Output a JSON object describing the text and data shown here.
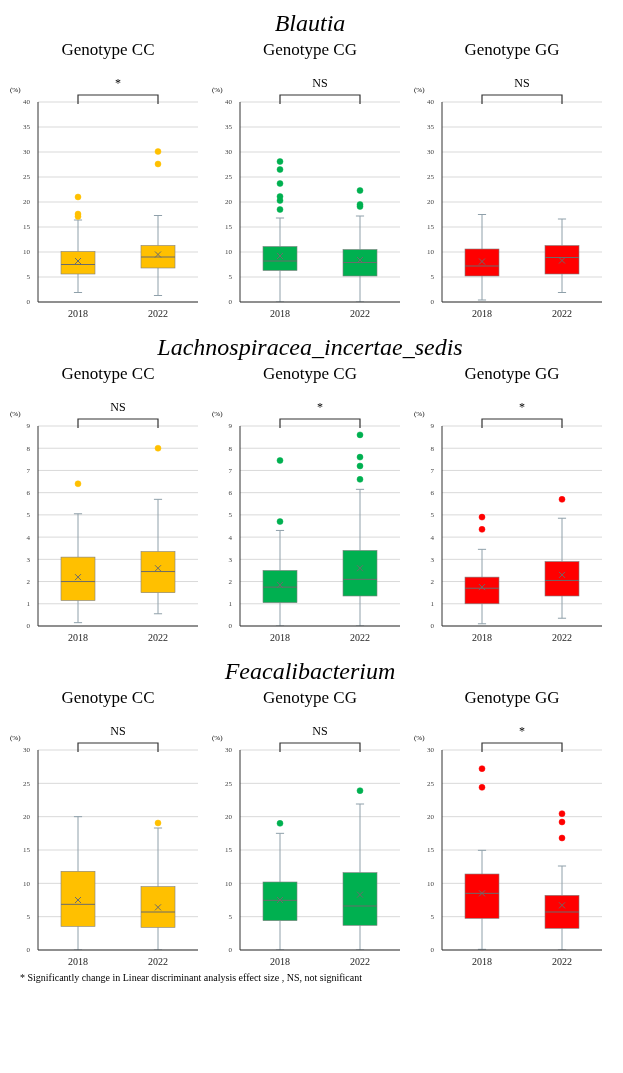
{
  "chart_data": [
    {
      "type": "box",
      "subtitle": "Genotype CC",
      "ylabel": "(%)",
      "categories": [
        "2018",
        "2022"
      ],
      "color": "#ffc000",
      "ylim": [
        0,
        40
      ],
      "yticks": [
        0,
        5,
        10,
        15,
        20,
        25,
        30,
        35,
        40
      ],
      "grid": "y",
      "annotations": [
        "*"
      ],
      "boxes": [
        {
          "low": 1.9,
          "q1": 5.6,
          "median": 7.5,
          "q3": 10.1,
          "high": 16.4,
          "mean": 8.2,
          "outliers": [
            21.0,
            17.6,
            17.1
          ]
        },
        {
          "low": 1.3,
          "q1": 6.8,
          "median": 9.0,
          "q3": 11.3,
          "high": 17.3,
          "mean": 9.5,
          "outliers": [
            30.1,
            27.6
          ]
        }
      ]
    },
    {
      "type": "box",
      "title": "Blautia",
      "subtitle": "Genotype CG",
      "ylabel": "(%)",
      "categories": [
        "2018",
        "2022"
      ],
      "color": "#00b050",
      "ylim": [
        0,
        40
      ],
      "yticks": [
        0,
        5,
        10,
        15,
        20,
        25,
        30,
        35,
        40
      ],
      "grid": "y",
      "annotations": [
        "NS"
      ],
      "boxes": [
        {
          "low": 0,
          "q1": 6.3,
          "median": 8.2,
          "q3": 11.1,
          "high": 16.8,
          "mean": 9.2,
          "outliers": [
            28.1,
            26.5,
            23.7,
            21.1,
            20.3,
            18.5
          ]
        },
        {
          "low": 0,
          "q1": 5.2,
          "median": 7.9,
          "q3": 10.5,
          "high": 17.2,
          "mean": 8.4,
          "outliers": [
            22.3,
            19.5,
            19.1
          ]
        }
      ]
    },
    {
      "type": "box",
      "subtitle": "Genotype GG",
      "ylabel": "(%)",
      "categories": [
        "2018",
        "2022"
      ],
      "color": "#ff0000",
      "ylim": [
        0,
        40
      ],
      "yticks": [
        0,
        5,
        10,
        15,
        20,
        25,
        30,
        35,
        40
      ],
      "grid": "y",
      "annotations": [
        "NS"
      ],
      "boxes": [
        {
          "low": 0.4,
          "q1": 5.2,
          "median": 7.2,
          "q3": 10.6,
          "high": 17.5,
          "mean": 8.1
        },
        {
          "low": 1.9,
          "q1": 5.6,
          "median": 8.9,
          "q3": 11.3,
          "high": 16.6,
          "mean": 8.3
        }
      ]
    },
    {
      "type": "box",
      "subtitle": "Genotype CC",
      "ylabel": "(%)",
      "categories": [
        "2018",
        "2022"
      ],
      "color": "#ffc000",
      "ylim": [
        0,
        9
      ],
      "yticks": [
        0,
        1,
        2,
        3,
        4,
        5,
        6,
        7,
        8,
        9
      ],
      "grid": "y",
      "annotations": [
        "NS"
      ],
      "boxes": [
        {
          "low": 0.15,
          "q1": 1.15,
          "median": 2.0,
          "q3": 3.1,
          "high": 5.05,
          "mean": 2.2,
          "outliers": [
            6.4
          ]
        },
        {
          "low": 0.55,
          "q1": 1.5,
          "median": 2.45,
          "q3": 3.35,
          "high": 5.7,
          "mean": 2.6,
          "outliers": [
            8.0
          ]
        }
      ]
    },
    {
      "type": "box",
      "title": "Lachnospiracea_incertae_sedis",
      "subtitle": "Genotype CG",
      "ylabel": "(%)",
      "categories": [
        "2018",
        "2022"
      ],
      "color": "#00b050",
      "ylim": [
        0,
        9
      ],
      "yticks": [
        0,
        1,
        2,
        3,
        4,
        5,
        6,
        7,
        8,
        9
      ],
      "grid": "y",
      "annotations": [
        "*"
      ],
      "boxes": [
        {
          "low": 0,
          "q1": 1.05,
          "median": 1.75,
          "q3": 2.5,
          "high": 4.3,
          "mean": 1.85,
          "outliers": [
            7.45,
            4.7
          ]
        },
        {
          "low": 0,
          "q1": 1.35,
          "median": 2.1,
          "q3": 3.4,
          "high": 6.15,
          "mean": 2.6,
          "outliers": [
            8.6,
            7.6,
            7.2,
            6.6
          ]
        }
      ]
    },
    {
      "type": "box",
      "subtitle": "Genotype GG",
      "ylabel": "(%)",
      "categories": [
        "2018",
        "2022"
      ],
      "color": "#ff0000",
      "ylim": [
        0,
        9
      ],
      "yticks": [
        0,
        1,
        2,
        3,
        4,
        5,
        6,
        7,
        8,
        9
      ],
      "grid": "y",
      "annotations": [
        "*"
      ],
      "boxes": [
        {
          "low": 0.1,
          "q1": 1.0,
          "median": 1.7,
          "q3": 2.2,
          "high": 3.45,
          "mean": 1.75,
          "outliers": [
            4.9,
            4.35
          ]
        },
        {
          "low": 0.35,
          "q1": 1.35,
          "median": 2.05,
          "q3": 2.9,
          "high": 4.85,
          "mean": 2.3,
          "outliers": [
            5.7
          ]
        }
      ]
    },
    {
      "type": "box",
      "subtitle": "Genotype CC",
      "ylabel": "(%)",
      "categories": [
        "2018",
        "2022"
      ],
      "color": "#ffc000",
      "ylim": [
        0,
        30
      ],
      "yticks": [
        0,
        5,
        10,
        15,
        20,
        25,
        30
      ],
      "grid": "y",
      "annotations": [
        "NS",
        "* Significantly change in Linear discriminant analysis effect size , NS, not significant"
      ],
      "boxes": [
        {
          "low": 0,
          "q1": 3.55,
          "median": 6.85,
          "q3": 11.8,
          "high": 20.0,
          "mean": 7.5
        },
        {
          "low": 0,
          "q1": 3.4,
          "median": 5.7,
          "q3": 9.5,
          "high": 18.3,
          "mean": 6.4,
          "outliers": [
            19.05
          ]
        }
      ]
    },
    {
      "type": "box",
      "title": "Feacalibacterium",
      "subtitle": "Genotype CG",
      "ylabel": "(%)",
      "categories": [
        "2018",
        "2022"
      ],
      "color": "#00b050",
      "ylim": [
        0,
        30
      ],
      "yticks": [
        0,
        5,
        10,
        15,
        20,
        25,
        30
      ],
      "grid": "y",
      "annotations": [
        "NS"
      ],
      "boxes": [
        {
          "low": 0,
          "q1": 4.4,
          "median": 7.45,
          "q3": 10.2,
          "high": 17.5,
          "mean": 7.5,
          "outliers": [
            19.0
          ]
        },
        {
          "low": 0,
          "q1": 3.7,
          "median": 6.6,
          "q3": 11.6,
          "high": 21.9,
          "mean": 8.3,
          "outliers": [
            23.9
          ]
        }
      ]
    },
    {
      "type": "box",
      "subtitle": "Genotype GG",
      "ylabel": "(%)",
      "categories": [
        "2018",
        "2022"
      ],
      "color": "#ff0000",
      "ylim": [
        0,
        30
      ],
      "yticks": [
        0,
        5,
        10,
        15,
        20,
        25,
        30
      ],
      "grid": "y",
      "annotations": [
        "*"
      ],
      "boxes": [
        {
          "low": 0.1,
          "q1": 4.75,
          "median": 8.5,
          "q3": 11.4,
          "high": 14.95,
          "mean": 8.5,
          "outliers": [
            27.2,
            24.4
          ]
        },
        {
          "low": 0,
          "q1": 3.25,
          "median": 5.7,
          "q3": 8.2,
          "high": 12.6,
          "mean": 6.7,
          "outliers": [
            20.45,
            19.2,
            16.8
          ]
        }
      ]
    }
  ]
}
